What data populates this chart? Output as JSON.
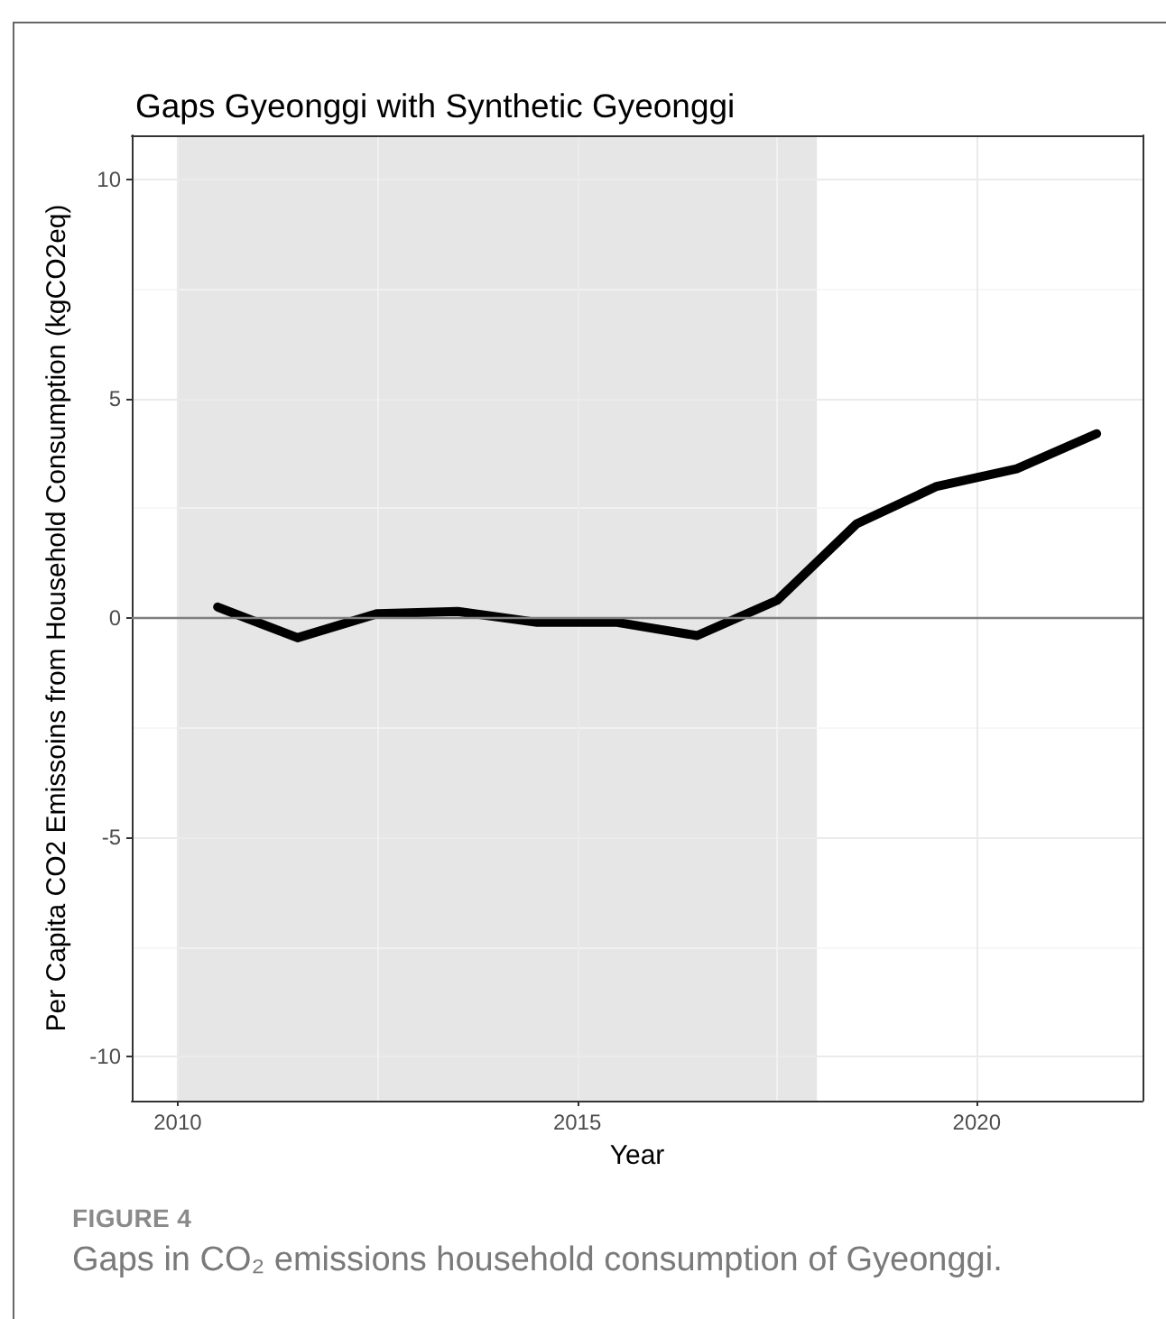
{
  "chart_data": {
    "type": "line",
    "title": "Gaps Gyeonggi with Synthetic Gyeonggi",
    "xlabel": "Year",
    "ylabel": "Per Capita CO2 Emissoins from Household Consumption (kgCO2eq)",
    "annotations": [
      "FIGURE 4",
      "Gaps in CO₂ emissions household consumption of Gyeonggi."
    ],
    "x": [
      2010.5,
      2011.5,
      2012.5,
      2013.5,
      2014.5,
      2015.5,
      2016.5,
      2017.5,
      2018.5,
      2019.5,
      2020.5,
      2021.5
    ],
    "values": [
      0.25,
      -0.45,
      0.1,
      0.15,
      -0.1,
      -0.1,
      -0.4,
      0.4,
      2.15,
      3.0,
      3.4,
      4.2
    ],
    "color": "#000000",
    "xlim": [
      2009.425,
      2022.075
    ],
    "xticks": [
      2010,
      2015,
      2020
    ],
    "ylim": [
      -11,
      11
    ],
    "yticks": [
      -10,
      -5,
      0,
      5,
      10
    ],
    "ref_lines": [
      {
        "axis": "y",
        "value": 0,
        "color": "#7f7f7f"
      }
    ],
    "bands": [
      {
        "axis": "x",
        "from": 2010,
        "to": 2018,
        "color": "#e6e6e6"
      }
    ],
    "grid": true,
    "marker": "none",
    "line_style": "solid"
  }
}
